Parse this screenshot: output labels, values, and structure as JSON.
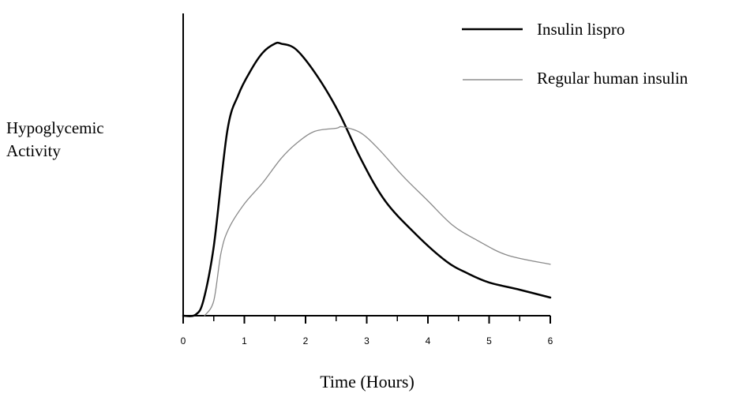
{
  "chart_data": {
    "type": "line",
    "title": "",
    "xlabel": "Time (Hours)",
    "ylabel_lines": [
      "Hypoglycemic",
      "Activity"
    ],
    "xlim": [
      0,
      6
    ],
    "ylim": [
      0,
      1
    ],
    "x_ticks": [
      0,
      1,
      2,
      3,
      4,
      5,
      6
    ],
    "grid": false,
    "legend_position": "top-right",
    "series": [
      {
        "name": "Insulin lispro",
        "color": "#000000",
        "weight": "thick",
        "points": [
          [
            0,
            0
          ],
          [
            0.2,
            0.003
          ],
          [
            0.33,
            0.05
          ],
          [
            0.5,
            0.23
          ],
          [
            0.72,
            0.61
          ],
          [
            0.9,
            0.73
          ],
          [
            1.1,
            0.81
          ],
          [
            1.3,
            0.87
          ],
          [
            1.5,
            0.9
          ],
          [
            1.6,
            0.9
          ],
          [
            1.85,
            0.88
          ],
          [
            2.2,
            0.79
          ],
          [
            2.55,
            0.67
          ],
          [
            2.9,
            0.52
          ],
          [
            3.3,
            0.38
          ],
          [
            3.8,
            0.27
          ],
          [
            4.3,
            0.18
          ],
          [
            4.65,
            0.14
          ],
          [
            5.0,
            0.11
          ],
          [
            5.5,
            0.086
          ],
          [
            6.0,
            0.06
          ]
        ]
      },
      {
        "name": "Regular human insulin",
        "color": "#8a8a8a",
        "weight": "thin",
        "points": [
          [
            0.35,
            0
          ],
          [
            0.5,
            0.05
          ],
          [
            0.62,
            0.21
          ],
          [
            0.75,
            0.29
          ],
          [
            1.0,
            0.37
          ],
          [
            1.3,
            0.44
          ],
          [
            1.6,
            0.52
          ],
          [
            1.85,
            0.57
          ],
          [
            2.15,
            0.61
          ],
          [
            2.5,
            0.62
          ],
          [
            2.6,
            0.625
          ],
          [
            2.9,
            0.605
          ],
          [
            3.2,
            0.55
          ],
          [
            3.6,
            0.46
          ],
          [
            4.0,
            0.38
          ],
          [
            4.4,
            0.3
          ],
          [
            4.8,
            0.25
          ],
          [
            5.3,
            0.2
          ],
          [
            6.0,
            0.17
          ]
        ]
      }
    ]
  }
}
